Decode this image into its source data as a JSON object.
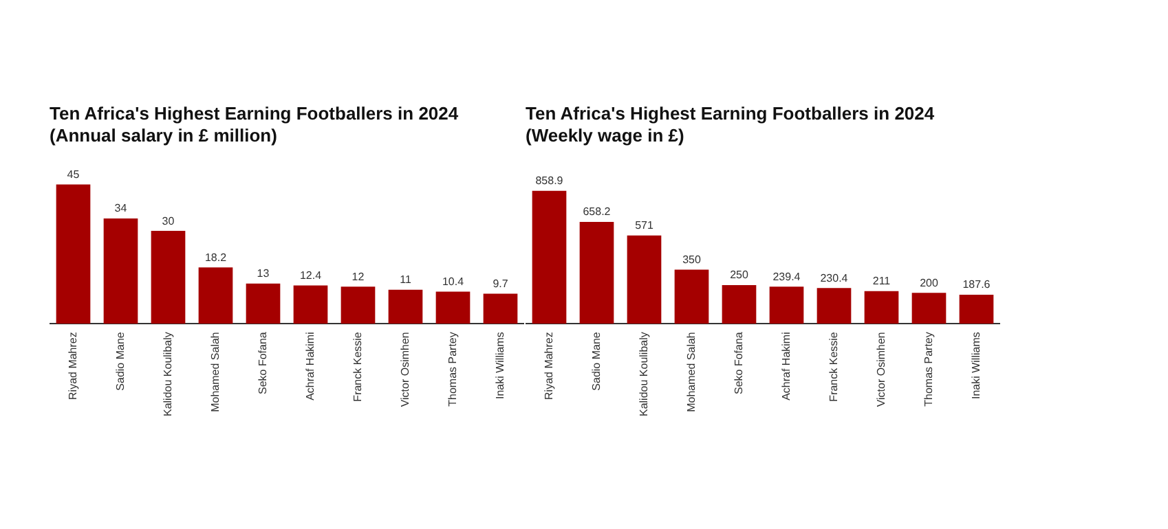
{
  "chart_data": [
    {
      "type": "bar",
      "title": "Ten Africa's Highest Earning Footballers in 2024 (Annual salary in £ million)",
      "categories": [
        "Riyad Mahrez",
        "Sadio Mane",
        "Kalidou Koulibaly",
        "Mohamed Salah",
        "Seko Fofana",
        "Achraf Hakimi",
        "Franck Kessie",
        "Victor Osimhen",
        "Thomas Partey",
        "Inaki Williams"
      ],
      "values": [
        45,
        34,
        30,
        18.2,
        13,
        12.4,
        12,
        11,
        10.4,
        9.7
      ],
      "color": "#a50000",
      "data_labels": true,
      "grid": false,
      "legend": false,
      "tick_labels": "x"
    },
    {
      "type": "bar",
      "title": "Ten Africa's Highest Earning Footballers in 2024 (Weekly wage in £)",
      "categories": [
        "Riyad Mahrez",
        "Sadio Mane",
        "Kalidou Koulibaly",
        "Mohamed Salah",
        "Seko Fofana",
        "Achraf Hakimi",
        "Franck Kessie",
        "Victor Osimhen",
        "Thomas Partey",
        "Inaki Williams"
      ],
      "values": [
        858.9,
        658.2,
        571,
        350,
        250,
        239.4,
        230.4,
        211,
        200,
        187.6
      ],
      "color": "#a50000",
      "data_labels": true,
      "grid": false,
      "legend": false,
      "tick_labels": "x"
    }
  ]
}
